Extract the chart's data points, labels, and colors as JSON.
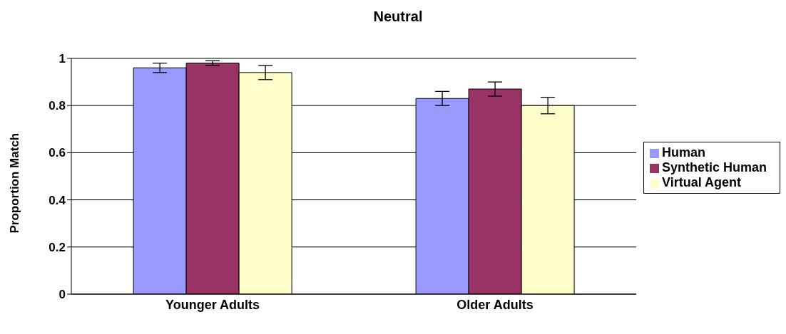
{
  "chart_data": {
    "type": "bar",
    "title": "Neutral",
    "ylabel": "Proportion Match",
    "categories": [
      "Younger Adults",
      "Older Adults"
    ],
    "series": [
      {
        "name": "Human",
        "color": "#9999ff",
        "values": [
          0.96,
          0.83
        ],
        "errors": [
          0.02,
          0.03
        ]
      },
      {
        "name": "Synthetic Human",
        "color": "#993366",
        "values": [
          0.98,
          0.87
        ],
        "errors": [
          0.01,
          0.03
        ]
      },
      {
        "name": "Virtual Agent",
        "color": "#ffffcc",
        "values": [
          0.94,
          0.8
        ],
        "errors": [
          0.03,
          0.035
        ]
      }
    ],
    "ylim": [
      0,
      1
    ],
    "yticks": [
      0,
      0.2,
      0.4,
      0.6,
      0.8,
      1
    ],
    "grid": "y",
    "legend": "right"
  }
}
